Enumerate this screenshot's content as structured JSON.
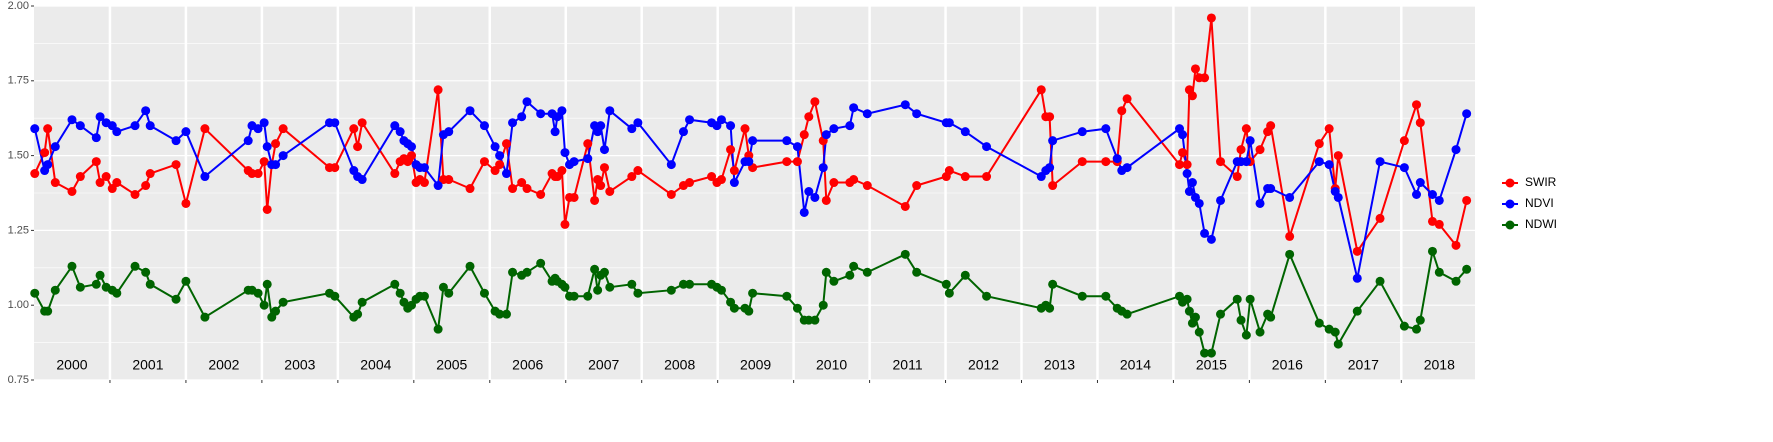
{
  "chart_data": {
    "type": "line",
    "x": [
      2000.01,
      2000.14,
      2000.18,
      2000.28,
      2000.5,
      2000.61,
      2000.82,
      2000.87,
      2000.95,
      2001.03,
      2001.09,
      2001.33,
      2001.47,
      2001.53,
      2001.87,
      2002.0,
      2002.25,
      2002.82,
      2002.87,
      2002.95,
      2003.03,
      2003.07,
      2003.13,
      2003.18,
      2003.28,
      2003.89,
      2003.96,
      2004.21,
      2004.26,
      2004.32,
      2004.75,
      2004.82,
      2004.87,
      2004.92,
      2004.97,
      2005.03,
      2005.08,
      2005.14,
      2005.32,
      2005.39,
      2005.46,
      2005.74,
      2005.93,
      2006.07,
      2006.13,
      2006.22,
      2006.3,
      2006.42,
      2006.49,
      2006.67,
      2006.82,
      2006.86,
      2006.89,
      2006.95,
      2006.99,
      2007.05,
      2007.11,
      2007.29,
      2007.38,
      2007.42,
      2007.46,
      2007.51,
      2007.58,
      2007.87,
      2007.95,
      2008.39,
      2008.55,
      2008.63,
      2008.92,
      2008.99,
      2009.05,
      2009.17,
      2009.22,
      2009.36,
      2009.41,
      2009.46,
      2009.91,
      2010.05,
      2010.14,
      2010.2,
      2010.28,
      2010.39,
      2010.43,
      2010.53,
      2010.74,
      2010.79,
      2010.97,
      2011.47,
      2011.62,
      2012.01,
      2012.05,
      2012.26,
      2012.54,
      2013.26,
      2013.32,
      2013.37,
      2013.41,
      2013.8,
      2014.11,
      2014.26,
      2014.32,
      2014.39,
      2015.08,
      2015.12,
      2015.18,
      2015.21,
      2015.25,
      2015.29,
      2015.34,
      2015.41,
      2015.5,
      2015.62,
      2015.84,
      2015.89,
      2015.96,
      2016.01,
      2016.14,
      2016.24,
      2016.28,
      2016.53,
      2016.92,
      2017.05,
      2017.13,
      2017.17,
      2017.42,
      2017.72,
      2018.04,
      2018.2,
      2018.25,
      2018.41,
      2018.5,
      2018.72,
      2018.86
    ],
    "series": [
      {
        "name": "SWIR",
        "color": "#ff0000",
        "values": [
          1.44,
          1.51,
          1.59,
          1.41,
          1.38,
          1.43,
          1.48,
          1.41,
          1.43,
          1.39,
          1.41,
          1.37,
          1.4,
          1.44,
          1.47,
          1.34,
          1.59,
          1.45,
          1.44,
          1.44,
          1.48,
          1.32,
          1.47,
          1.54,
          1.59,
          1.46,
          1.46,
          1.59,
          1.53,
          1.61,
          1.44,
          1.48,
          1.49,
          1.48,
          1.5,
          1.41,
          1.42,
          1.41,
          1.72,
          1.42,
          1.42,
          1.39,
          1.48,
          1.45,
          1.47,
          1.54,
          1.39,
          1.41,
          1.39,
          1.37,
          1.44,
          1.43,
          1.43,
          1.45,
          1.27,
          1.36,
          1.36,
          1.54,
          1.35,
          1.42,
          1.4,
          1.46,
          1.38,
          1.43,
          1.45,
          1.37,
          1.4,
          1.41,
          1.43,
          1.41,
          1.42,
          1.52,
          1.45,
          1.59,
          1.5,
          1.46,
          1.48,
          1.48,
          1.57,
          1.63,
          1.68,
          1.55,
          1.35,
          1.41,
          1.41,
          1.42,
          1.4,
          1.33,
          1.4,
          1.43,
          1.45,
          1.43,
          1.43,
          1.72,
          1.63,
          1.63,
          1.4,
          1.48,
          1.48,
          1.48,
          1.65,
          1.69,
          1.47,
          1.51,
          1.47,
          1.72,
          1.7,
          1.79,
          1.76,
          1.76,
          1.96,
          1.48,
          1.43,
          1.52,
          1.59,
          1.48,
          1.52,
          1.58,
          1.6,
          1.23,
          1.54,
          1.59,
          1.39,
          1.5,
          1.18,
          1.29,
          1.55,
          1.67,
          1.61,
          1.28,
          1.27,
          1.2,
          1.35
        ]
      },
      {
        "name": "NDVI",
        "color": "#0000ff",
        "values": [
          1.59,
          1.45,
          1.47,
          1.53,
          1.62,
          1.6,
          1.56,
          1.63,
          1.61,
          1.6,
          1.58,
          1.6,
          1.65,
          1.6,
          1.55,
          1.58,
          1.43,
          1.55,
          1.6,
          1.59,
          1.61,
          1.53,
          1.47,
          1.47,
          1.5,
          1.61,
          1.61,
          1.45,
          1.43,
          1.42,
          1.6,
          1.58,
          1.55,
          1.54,
          1.53,
          1.47,
          1.46,
          1.46,
          1.4,
          1.57,
          1.58,
          1.65,
          1.6,
          1.53,
          1.5,
          1.44,
          1.61,
          1.63,
          1.68,
          1.64,
          1.64,
          1.58,
          1.63,
          1.65,
          1.51,
          1.47,
          1.48,
          1.49,
          1.6,
          1.58,
          1.6,
          1.52,
          1.65,
          1.59,
          1.61,
          1.47,
          1.58,
          1.62,
          1.61,
          1.6,
          1.62,
          1.6,
          1.41,
          1.48,
          1.48,
          1.55,
          1.55,
          1.53,
          1.31,
          1.38,
          1.36,
          1.46,
          1.57,
          1.59,
          1.6,
          1.66,
          1.64,
          1.67,
          1.64,
          1.61,
          1.61,
          1.58,
          1.53,
          1.43,
          1.45,
          1.46,
          1.55,
          1.58,
          1.59,
          1.49,
          1.45,
          1.46,
          1.59,
          1.57,
          1.44,
          1.38,
          1.41,
          1.36,
          1.34,
          1.24,
          1.22,
          1.35,
          1.48,
          1.48,
          1.48,
          1.55,
          1.34,
          1.39,
          1.39,
          1.36,
          1.48,
          1.47,
          1.38,
          1.36,
          1.09,
          1.48,
          1.46,
          1.37,
          1.41,
          1.37,
          1.35,
          1.52,
          1.64
        ]
      },
      {
        "name": "NDWI",
        "color": "#006400",
        "values": [
          1.04,
          0.98,
          0.98,
          1.05,
          1.13,
          1.06,
          1.07,
          1.1,
          1.06,
          1.05,
          1.04,
          1.13,
          1.11,
          1.07,
          1.02,
          1.08,
          0.96,
          1.05,
          1.05,
          1.04,
          1.0,
          1.07,
          0.96,
          0.98,
          1.01,
          1.04,
          1.03,
          0.96,
          0.97,
          1.01,
          1.07,
          1.04,
          1.01,
          0.99,
          1.0,
          1.02,
          1.03,
          1.03,
          0.92,
          1.06,
          1.04,
          1.13,
          1.04,
          0.98,
          0.97,
          0.97,
          1.11,
          1.1,
          1.11,
          1.14,
          1.08,
          1.09,
          1.08,
          1.07,
          1.06,
          1.03,
          1.03,
          1.03,
          1.12,
          1.05,
          1.1,
          1.11,
          1.06,
          1.07,
          1.04,
          1.05,
          1.07,
          1.07,
          1.07,
          1.06,
          1.05,
          1.01,
          0.99,
          0.99,
          0.98,
          1.04,
          1.03,
          0.99,
          0.95,
          0.95,
          0.95,
          1.0,
          1.11,
          1.08,
          1.1,
          1.13,
          1.11,
          1.17,
          1.11,
          1.07,
          1.04,
          1.1,
          1.03,
          0.99,
          1.0,
          0.99,
          1.07,
          1.03,
          1.03,
          0.99,
          0.98,
          0.97,
          1.03,
          1.01,
          1.02,
          0.98,
          0.94,
          0.96,
          0.91,
          0.84,
          0.84,
          0.97,
          1.02,
          0.95,
          0.9,
          1.02,
          0.91,
          0.97,
          0.96,
          1.17,
          0.94,
          0.92,
          0.91,
          0.87,
          0.98,
          1.08,
          0.93,
          0.92,
          0.95,
          1.18,
          1.11,
          1.08,
          1.12
        ]
      }
    ],
    "xlim": [
      2000,
      2018.97
    ],
    "xticks": [
      2001,
      2002,
      2003,
      2004,
      2005,
      2006,
      2007,
      2008,
      2009,
      2010,
      2011,
      2012,
      2013,
      2014,
      2015,
      2016,
      2017,
      2018
    ],
    "ylim": [
      0.75,
      2.0
    ],
    "yticks": [
      {
        "value": 0.75,
        "label": "0.75"
      },
      {
        "value": 1.0,
        "label": "1.00"
      },
      {
        "value": 1.25,
        "label": "1.25"
      },
      {
        "value": 1.5,
        "label": "1.50"
      },
      {
        "value": 1.75,
        "label": "1.75"
      },
      {
        "value": 2.0,
        "label": "2.00"
      }
    ],
    "annotations": [
      "2000",
      "2001",
      "2002",
      "2003",
      "2004",
      "2005",
      "2006",
      "2007",
      "2008",
      "2009",
      "2010",
      "2011",
      "2012",
      "2013",
      "2014",
      "2015",
      "2016",
      "2017",
      "2018"
    ],
    "grid": true,
    "legend": "right"
  }
}
